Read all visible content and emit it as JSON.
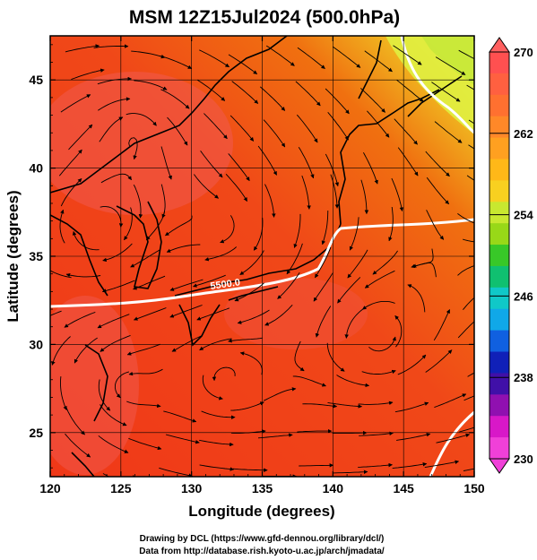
{
  "title": "MSM 12Z15Jul2024 (500.0hPa)",
  "xlabel": "Longitude (degrees)",
  "ylabel": "Latitude  (degrees)",
  "x_ticks": [
    "120",
    "125",
    "130",
    "135",
    "140",
    "145",
    "150"
  ],
  "y_ticks": [
    "25",
    "30",
    "35",
    "40",
    "45"
  ],
  "colorbar": {
    "ticks": [
      "270",
      "262",
      "254",
      "246",
      "238",
      "230"
    ],
    "colors": [
      "#e8f060",
      "#c8e830",
      "#98d818",
      "#38c828",
      "#10c070",
      "#10c8c8",
      "#10a8e8",
      "#1060e0",
      "#1020b8",
      "#4010a8",
      "#9010b0",
      "#d818c8",
      "#f040d8"
    ],
    "top_color": "#ff6060",
    "bottom_color": "#f040d8"
  },
  "contour_label": "5500.0",
  "credits": {
    "line1": "Drawing by DCL (https://www.gfd-dennou.org/library/dcl/)",
    "line2": "Data from http://database.rish.kyoto-u.ac.jp/arch/jmadata/"
  },
  "chart_data": {
    "type": "map",
    "title": "MSM 12Z15Jul2024 (500.0hPa)",
    "xlabel": "Longitude (degrees)",
    "ylabel": "Latitude  (degrees)",
    "xlim": [
      120,
      150
    ],
    "ylim": [
      22.5,
      47.5
    ],
    "x_ticks": [
      120,
      125,
      130,
      135,
      140,
      145,
      150
    ],
    "y_ticks": [
      25,
      30,
      35,
      40,
      45
    ],
    "colorbar_range": [
      230,
      270
    ],
    "colorbar_ticks": [
      270,
      262,
      254,
      246,
      238,
      230
    ],
    "contour_value": 5500.0,
    "grid": true
  }
}
